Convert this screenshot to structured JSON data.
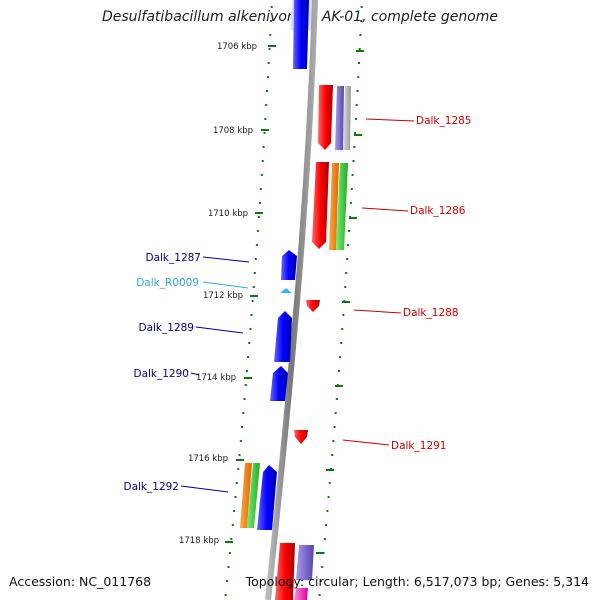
{
  "header": {
    "title": "Desulfatibacillum alkenivorans AK-01, complete genome"
  },
  "footer": {
    "accession": "Accession: NC_011768",
    "summary": "Topology: circular; Length: 6,517,073 bp; Genes: 5,314"
  },
  "ticks": [
    {
      "label": "1706 kbp"
    },
    {
      "label": "1708 kbp"
    },
    {
      "label": "1710 kbp"
    },
    {
      "label": "1712 kbp"
    },
    {
      "label": "1714 kbp"
    },
    {
      "label": "1716 kbp"
    },
    {
      "label": "1718 kbp"
    }
  ],
  "genes": [
    {
      "label": "Dalk_1285",
      "color": "#cc0000"
    },
    {
      "label": "Dalk_1286",
      "color": "#cc0000"
    },
    {
      "label": "Dalk_1287",
      "color": "#000099"
    },
    {
      "label": "Dalk_R0009",
      "color": "#33aadd"
    },
    {
      "label": "Dalk_1288",
      "color": "#cc0000"
    },
    {
      "label": "Dalk_1289",
      "color": "#000099"
    },
    {
      "label": "Dalk_1290",
      "color": "#000099"
    },
    {
      "label": "Dalk_1291",
      "color": "#cc0000"
    },
    {
      "label": "Dalk_1292",
      "color": "#000099"
    }
  ],
  "colors": {
    "forward": "#ff0000",
    "reverse": "#0000ff",
    "rna": "#33bbff",
    "backbone": "#888888",
    "tick_marks": "#117711",
    "cog_purple": "#7766cc",
    "cog_orange": "#ff8800",
    "cog_green": "#33cc33",
    "cog_gray": "#aaaaaa",
    "cog_magenta": "#ff33cc"
  }
}
